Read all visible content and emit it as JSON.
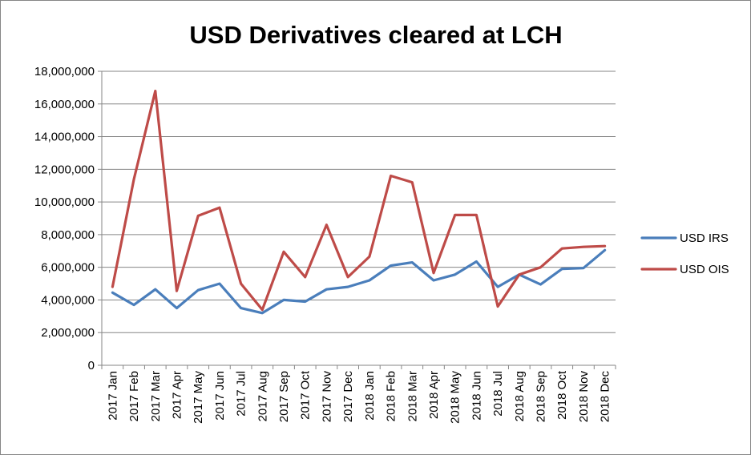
{
  "chart_data": {
    "type": "line",
    "title": "USD Derivatives cleared at LCH",
    "xlabel": "",
    "ylabel": "",
    "ylim": [
      0,
      18000000
    ],
    "yticks": [
      "0",
      "2,000,000",
      "4,000,000",
      "6,000,000",
      "8,000,000",
      "10,000,000",
      "12,000,000",
      "14,000,000",
      "16,000,000",
      "18,000,000"
    ],
    "ytick_values": [
      0,
      2000000,
      4000000,
      6000000,
      8000000,
      10000000,
      12000000,
      14000000,
      16000000,
      18000000
    ],
    "grid": true,
    "legend_position": "right",
    "categories": [
      "2017 Jan",
      "2017 Feb",
      "2017 Mar",
      "2017 Apr",
      "2017 May",
      "2017 Jun",
      "2017 Jul",
      "2017 Aug",
      "2017 Sep",
      "2017 Oct",
      "2017 Nov",
      "2017 Dec",
      "2018 Jan",
      "2018 Feb",
      "2018 Mar",
      "2018 Apr",
      "2018 May",
      "2018 Jun",
      "2018 Jul",
      "2018 Aug",
      "2018 Sep",
      "2018 Oct",
      "2018 Nov",
      "2018 Dec"
    ],
    "series": [
      {
        "name": "USD IRS",
        "color": "#4a7ebb",
        "values": [
          4450000,
          3700000,
          4650000,
          3500000,
          4600000,
          5000000,
          3500000,
          3200000,
          4000000,
          3900000,
          4650000,
          4800000,
          5200000,
          6100000,
          6300000,
          5200000,
          5550000,
          6350000,
          4800000,
          5550000,
          4950000,
          5900000,
          5950000,
          7050000
        ]
      },
      {
        "name": "USD OIS",
        "color": "#be4b48",
        "values": [
          4800000,
          11400000,
          16800000,
          4550000,
          9150000,
          9650000,
          5000000,
          3400000,
          6950000,
          5400000,
          8600000,
          5400000,
          6650000,
          11600000,
          11200000,
          5650000,
          9200000,
          9200000,
          3600000,
          5550000,
          6000000,
          7150000,
          7250000,
          7300000
        ]
      }
    ]
  }
}
